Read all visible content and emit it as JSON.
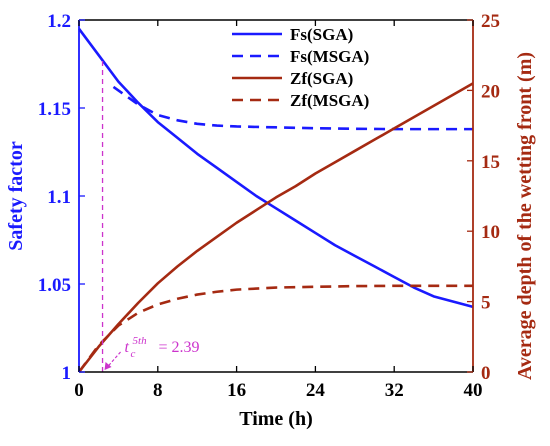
{
  "chart_data": {
    "type": "line",
    "x_axis": {
      "label": "Time (h)",
      "range": [
        0,
        40
      ],
      "ticks": [
        0,
        8,
        16,
        24,
        32,
        40
      ],
      "tick_labels": [
        "0",
        "8",
        "16",
        "24",
        "32",
        "40"
      ],
      "color": "#000000"
    },
    "y_axis_left": {
      "label": "Safety factor",
      "range": [
        1.0,
        1.2
      ],
      "ticks": [
        1.0,
        1.05,
        1.1,
        1.15,
        1.2
      ],
      "tick_labels": [
        "1",
        "1.05",
        "1.1",
        "1.15",
        "1.2"
      ],
      "color": "#1a1aff"
    },
    "y_axis_right": {
      "label": "Average depth of the wetting front (m)",
      "range": [
        0,
        25
      ],
      "ticks": [
        0,
        5,
        10,
        15,
        20,
        25
      ],
      "tick_labels": [
        "0",
        "5",
        "10",
        "15",
        "20",
        "25"
      ],
      "color": "#a52a12"
    },
    "grid": false,
    "legend_position": "top-right",
    "series": [
      {
        "name": "Fs(SGA)",
        "axis": "left",
        "color": "#1a1aff",
        "dash": "solid",
        "x": [
          0,
          2,
          4,
          6,
          8,
          10,
          12,
          14,
          16,
          18,
          20,
          22,
          24,
          26,
          28,
          30,
          32,
          34,
          36,
          38,
          40
        ],
        "y": [
          1.195,
          1.18,
          1.165,
          1.153,
          1.142,
          1.133,
          1.124,
          1.116,
          1.108,
          1.1,
          1.093,
          1.086,
          1.079,
          1.072,
          1.066,
          1.06,
          1.054,
          1.048,
          1.043,
          1.04,
          1.037
        ]
      },
      {
        "name": "Fs(MSGA)",
        "axis": "left",
        "color": "#1a1aff",
        "dash": "dashed",
        "x": [
          3.5,
          5,
          6,
          8,
          10,
          12,
          14,
          16,
          20,
          24,
          28,
          32,
          36,
          40
        ],
        "y": [
          1.162,
          1.156,
          1.152,
          1.146,
          1.143,
          1.141,
          1.14,
          1.1395,
          1.139,
          1.1385,
          1.1382,
          1.138,
          1.138,
          1.138
        ]
      },
      {
        "name": "Zf(SGA)",
        "axis": "right",
        "color": "#a52a12",
        "dash": "solid",
        "x": [
          0,
          2,
          4,
          6,
          8,
          10,
          12,
          14,
          16,
          18,
          20,
          22,
          24,
          26,
          28,
          30,
          32,
          34,
          36,
          38,
          40
        ],
        "y": [
          0,
          1.8,
          3.4,
          4.9,
          6.3,
          7.5,
          8.6,
          9.6,
          10.6,
          11.5,
          12.4,
          13.2,
          14.1,
          14.9,
          15.7,
          16.5,
          17.3,
          18.1,
          18.9,
          19.7,
          20.5
        ]
      },
      {
        "name": "Zf(MSGA)",
        "axis": "right",
        "color": "#a52a12",
        "dash": "dashed",
        "x": [
          0,
          2,
          4,
          6,
          8,
          10,
          12,
          14,
          16,
          20,
          24,
          28,
          32,
          36,
          40
        ],
        "y": [
          0,
          1.9,
          3.3,
          4.2,
          4.8,
          5.2,
          5.5,
          5.7,
          5.85,
          6.0,
          6.05,
          6.1,
          6.12,
          6.12,
          6.12
        ]
      }
    ],
    "annotations": [
      {
        "text": "= 2.39",
        "symbol_base": "t",
        "symbol_subscript": "c",
        "symbol_superscript": "5th",
        "x_value": 2.39,
        "color": "#cc33cc",
        "marker_line": "dashed vertical from x-axis to Fs(SGA) curve"
      }
    ]
  }
}
